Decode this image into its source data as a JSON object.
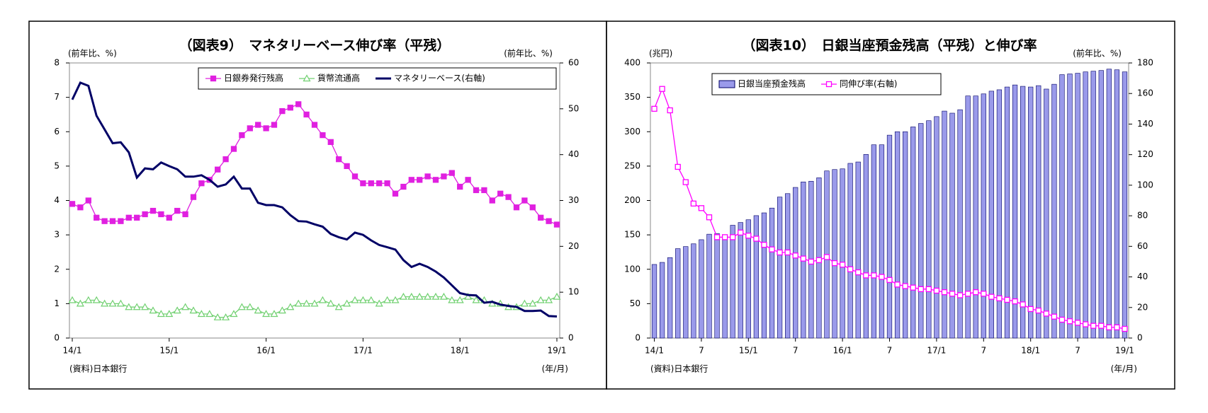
{
  "chart_data": [
    {
      "type": "line",
      "title": "（図表9）　マネタリーベース伸び率（平残）",
      "y_label": "(前年比、%)",
      "y2_label": "(前年比、%)",
      "source": "(資料)日本銀行",
      "x_label": "(年/月)",
      "categories": [
        "14/1",
        null,
        null,
        null,
        null,
        null,
        null,
        null,
        null,
        null,
        null,
        null,
        "15/1",
        null,
        null,
        null,
        null,
        null,
        null,
        null,
        null,
        null,
        null,
        null,
        "16/1",
        null,
        null,
        null,
        null,
        null,
        null,
        null,
        null,
        null,
        null,
        null,
        "17/1",
        null,
        null,
        null,
        null,
        null,
        null,
        null,
        null,
        null,
        null,
        null,
        "18/1",
        null,
        null,
        null,
        null,
        null,
        null,
        null,
        null,
        null,
        null,
        null,
        "19/1"
      ],
      "ylim": [
        0,
        8
      ],
      "yticks": [
        0,
        1,
        2,
        3,
        4,
        5,
        6,
        7,
        8
      ],
      "y2lim": [
        0,
        60
      ],
      "y2ticks": [
        0,
        10,
        20,
        30,
        40,
        50,
        60
      ],
      "series": [
        {
          "name": "日銀券発行残高",
          "color": "#e020e0",
          "marker": "square",
          "values": [
            3.9,
            3.8,
            4.0,
            3.5,
            3.4,
            3.4,
            3.4,
            3.5,
            3.5,
            3.6,
            3.7,
            3.6,
            3.5,
            3.7,
            3.6,
            4.1,
            4.5,
            4.6,
            4.9,
            5.2,
            5.5,
            5.9,
            6.1,
            6.2,
            6.1,
            6.2,
            6.6,
            6.7,
            6.8,
            6.5,
            6.2,
            5.9,
            5.7,
            5.2,
            5.0,
            4.7,
            4.5,
            4.5,
            4.5,
            4.5,
            4.2,
            4.4,
            4.6,
            4.6,
            4.7,
            4.6,
            4.7,
            4.8,
            4.4,
            4.6,
            4.3,
            4.3,
            4.0,
            4.2,
            4.1,
            3.8,
            4.0,
            3.8,
            3.5,
            3.4,
            3.3
          ]
        },
        {
          "name": "貨幣流通高",
          "color": "#70d070",
          "marker": "triangle",
          "values": [
            1.1,
            1.0,
            1.1,
            1.1,
            1.0,
            1.0,
            1.0,
            0.9,
            0.9,
            0.9,
            0.8,
            0.7,
            0.7,
            0.8,
            0.9,
            0.8,
            0.7,
            0.7,
            0.6,
            0.6,
            0.7,
            0.9,
            0.9,
            0.8,
            0.7,
            0.7,
            0.8,
            0.9,
            1.0,
            1.0,
            1.0,
            1.1,
            1.0,
            0.9,
            1.0,
            1.1,
            1.1,
            1.1,
            1.0,
            1.1,
            1.1,
            1.2,
            1.2,
            1.2,
            1.2,
            1.2,
            1.2,
            1.1,
            1.1,
            1.2,
            1.1,
            1.1,
            1.0,
            1.0,
            0.9,
            0.9,
            1.0,
            1.0,
            1.1,
            1.1,
            1.2
          ]
        },
        {
          "name": "マネタリーベース(右軸)",
          "color": "#000066",
          "marker": "none",
          "axis": "y2",
          "values": [
            52,
            55.7,
            55,
            48.5,
            45.5,
            42.5,
            42.7,
            40.5,
            35,
            37,
            36.8,
            38.3,
            37.5,
            36.8,
            35.2,
            35.2,
            35.5,
            34.5,
            33,
            33.5,
            35.2,
            32.6,
            32.6,
            29.5,
            29,
            29,
            28.5,
            26.8,
            25.5,
            25.4,
            24.8,
            24.3,
            22.7,
            22,
            21.5,
            23,
            22.5,
            21.3,
            20.3,
            19.8,
            19.3,
            17,
            15.5,
            16.2,
            15.5,
            14.5,
            13.2,
            11.5,
            9.8,
            9.4,
            9.3,
            7.7,
            7.9,
            7.3,
            7.0,
            6.8,
            5.9,
            5.9,
            6.0,
            4.8,
            4.7
          ]
        }
      ]
    },
    {
      "type": "bar",
      "title": "（図表10）　日銀当座預金残高（平残）と伸び率",
      "y_label": "(兆円)",
      "y2_label": "(前年比、%)",
      "source": "(資料)日本銀行",
      "x_label": "(年/月)",
      "categories": [
        "14/1",
        null,
        null,
        null,
        null,
        null,
        "7",
        null,
        null,
        null,
        null,
        null,
        "15/1",
        null,
        null,
        null,
        null,
        null,
        "7",
        null,
        null,
        null,
        null,
        null,
        "16/1",
        null,
        null,
        null,
        null,
        null,
        "7",
        null,
        null,
        null,
        null,
        null,
        "17/1",
        null,
        null,
        null,
        null,
        null,
        "7",
        null,
        null,
        null,
        null,
        null,
        "18/1",
        null,
        null,
        null,
        null,
        null,
        "7",
        null,
        null,
        null,
        null,
        null,
        "19/1"
      ],
      "ylim": [
        0,
        400
      ],
      "yticks": [
        0,
        50,
        100,
        150,
        200,
        250,
        300,
        350,
        400
      ],
      "y2lim": [
        0,
        180
      ],
      "y2ticks": [
        0,
        20,
        40,
        60,
        80,
        100,
        120,
        140,
        160,
        180
      ],
      "series": [
        {
          "name": "日銀当座預金残高",
          "color": "#9a9aea",
          "type": "bar",
          "values": [
            107,
            110,
            117,
            130,
            133,
            137,
            143,
            151,
            152,
            150,
            164,
            168,
            172,
            178,
            182,
            189,
            205,
            210,
            219,
            227,
            228,
            233,
            243,
            245,
            246,
            254,
            256,
            267,
            281,
            281,
            295,
            300,
            300,
            307,
            312,
            316,
            322,
            330,
            327,
            332,
            352,
            352,
            355,
            359,
            361,
            365,
            368,
            366,
            365,
            367,
            362,
            369,
            383,
            384,
            385,
            387,
            388,
            389,
            391,
            390,
            387
          ]
        },
        {
          "name": "同伸び率(右軸)",
          "color": "#ff00ff",
          "type": "line",
          "marker": "square",
          "axis": "y2",
          "values": [
            150,
            163,
            149,
            112,
            102,
            88,
            85,
            79,
            66,
            66,
            66,
            69,
            67,
            65,
            61,
            58,
            56,
            56,
            54,
            52,
            50,
            51,
            53,
            49,
            48,
            45,
            43,
            41,
            41,
            40,
            38,
            35,
            34,
            33,
            32,
            32,
            31,
            30,
            29,
            28,
            29,
            30,
            29,
            27,
            26,
            25,
            24,
            22,
            19,
            18,
            16,
            14,
            12,
            11,
            10,
            9,
            8,
            8,
            7,
            7,
            6
          ]
        }
      ]
    }
  ]
}
